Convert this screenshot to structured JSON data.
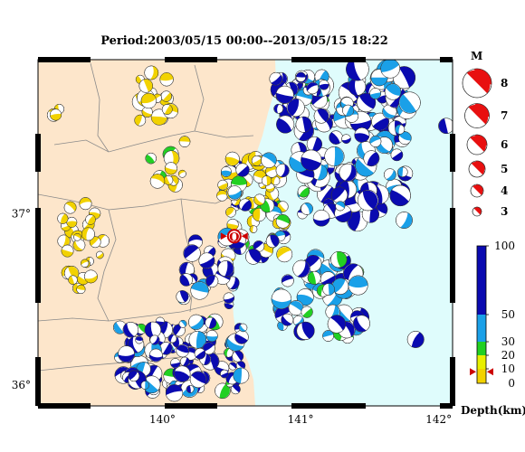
{
  "title": "Period:2003/05/15 00:00--2013/05/15 18:22",
  "map": {
    "lon_range": [
      139.1,
      142.1
    ],
    "lat_range": [
      35.88,
      37.9
    ],
    "lon_ticks": [
      {
        "value": 140,
        "label": "140°"
      },
      {
        "value": 141,
        "label": "141°"
      },
      {
        "value": 142,
        "label": "142°"
      }
    ],
    "lat_ticks": [
      {
        "value": 37,
        "label": "37°"
      },
      {
        "value": 36,
        "label": "36°"
      }
    ],
    "land_color": "#fde6cb",
    "sea_color": "#dffcfc",
    "main_shock": {
      "lon": 140.52,
      "lat": 36.87,
      "label": "Q"
    }
  },
  "magnitude_legend": {
    "title": "M",
    "items": [
      {
        "label": "8",
        "value": 8
      },
      {
        "label": "7",
        "value": 7
      },
      {
        "label": "6",
        "value": 6
      },
      {
        "label": "5",
        "value": 5
      },
      {
        "label": "4",
        "value": 4
      },
      {
        "label": "3",
        "value": 3
      }
    ]
  },
  "depth_scale": {
    "title": "Depth(km)",
    "ticks": [
      "100",
      "50",
      "30",
      "20",
      "10",
      "0"
    ],
    "bands": [
      {
        "from": 0,
        "to": 10,
        "color": "#f2d200"
      },
      {
        "from": 10,
        "to": 20,
        "color": "#e8f000"
      },
      {
        "from": 20,
        "to": 30,
        "color": "#22d022"
      },
      {
        "from": 30,
        "to": 50,
        "color": "#1aa0e8"
      },
      {
        "from": 50,
        "to": 100,
        "color": "#0a0ab0"
      }
    ],
    "marker_depth": 8
  }
}
